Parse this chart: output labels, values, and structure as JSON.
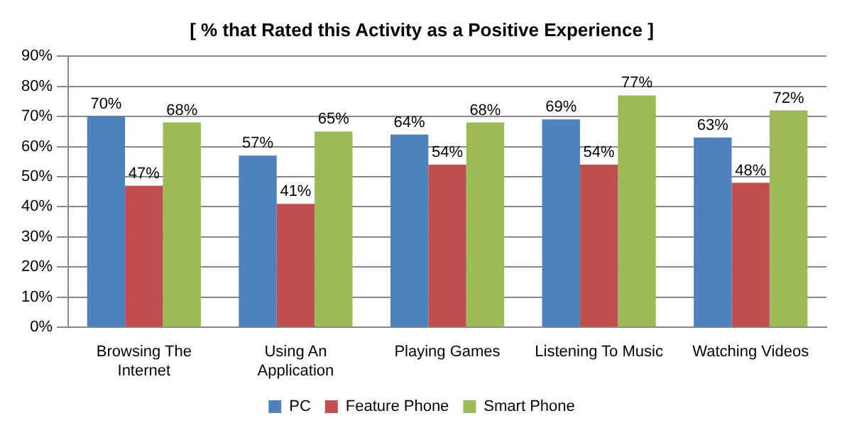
{
  "chart_data": {
    "type": "bar",
    "title": "[ % that Rated this Activity as a Positive Experience ]",
    "categories": [
      "Browsing The Internet",
      "Using An Application",
      "Playing Games",
      "Listening To Music",
      "Watching Videos"
    ],
    "series": [
      {
        "name": "PC",
        "color": "#4f81bd",
        "values": [
          70,
          57,
          64,
          69,
          63
        ],
        "value_labels": [
          "70%",
          "57%",
          "64%",
          "69%",
          "63%"
        ]
      },
      {
        "name": "Feature Phone",
        "color": "#c0504d",
        "values": [
          47,
          41,
          54,
          54,
          48
        ],
        "value_labels": [
          "47%",
          "41%",
          "54%",
          "54%",
          "48%"
        ]
      },
      {
        "name": "Smart Phone",
        "color": "#9bbb59",
        "values": [
          68,
          65,
          68,
          77,
          72
        ],
        "value_labels": [
          "68%",
          "65%",
          "68%",
          "77%",
          "72%"
        ]
      }
    ],
    "ylim": [
      0,
      90
    ],
    "yticks": [
      {
        "value": 0,
        "label": "0%"
      },
      {
        "value": 10,
        "label": "10%"
      },
      {
        "value": 20,
        "label": "20%"
      },
      {
        "value": 30,
        "label": "30%"
      },
      {
        "value": 40,
        "label": "40%"
      },
      {
        "value": 50,
        "label": "50%"
      },
      {
        "value": 60,
        "label": "60%"
      },
      {
        "value": 70,
        "label": "70%"
      },
      {
        "value": 80,
        "label": "80%"
      },
      {
        "value": 90,
        "label": "90%"
      }
    ],
    "grid": "y",
    "legend": "bottom"
  }
}
